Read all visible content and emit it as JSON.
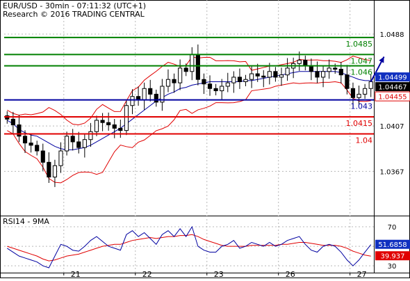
{
  "header": {
    "title": "EUR/USD - 30min - 07:11:32 (UTC+1)",
    "subtitle": "Research © 2016 TRADING CENTRAL"
  },
  "rsi_panel": {
    "label": "RSI14 - 9MA"
  },
  "colors": {
    "resistance": "#008000",
    "support_pivot": "#0000a0",
    "support": "#e00000",
    "bollinger": "#e00000",
    "ma": "#0000a0",
    "candle": "#000000",
    "rsi": "#0000a0",
    "rsi_ma": "#e00000",
    "grid": "#b8b8b8"
  },
  "chart_data": [
    {
      "type": "candlestick",
      "instrument": "EUR/USD",
      "timeframe": "30min",
      "ylim": [
        1.0328,
        1.0518
      ],
      "y_ticks": [
        1.0367,
        1.0407,
        1.0488
      ],
      "y_tick_labels": [
        "1.0367",
        "1.0407",
        "1.0488"
      ],
      "x_tick_labels": [
        "21",
        "22",
        "23",
        "26",
        "27"
      ],
      "x_tick_positions": [
        10,
        22,
        34,
        46,
        58
      ],
      "bar_count": 62,
      "grid": true,
      "levels": [
        {
          "label": "1.0485",
          "value": 1.0485,
          "kind": "resistance"
        },
        {
          "label": "1.047",
          "value": 1.047,
          "kind": "resistance"
        },
        {
          "label": "1.046",
          "value": 1.046,
          "kind": "resistance"
        },
        {
          "label": "1.043",
          "value": 1.043,
          "kind": "pivot"
        },
        {
          "label": "1.0415",
          "value": 1.0415,
          "kind": "support"
        },
        {
          "label": "1.04",
          "value": 1.04,
          "kind": "support"
        }
      ],
      "price_tags": [
        {
          "label": "1.04499",
          "value": 1.04499,
          "style": "blue"
        },
        {
          "label": "1.04467",
          "value": 1.04467,
          "style": "black"
        },
        {
          "label": "1.04455",
          "value": 1.04455,
          "style": "red"
        }
      ],
      "close": [
        1.0413,
        1.0408,
        1.0398,
        1.0392,
        1.039,
        1.0385,
        1.0375,
        1.0362,
        1.0372,
        1.0385,
        1.0398,
        1.0393,
        1.0388,
        1.0395,
        1.0402,
        1.0412,
        1.041,
        1.0408,
        1.0405,
        1.0403,
        1.0425,
        1.0433,
        1.043,
        1.044,
        1.0435,
        1.0428,
        1.0442,
        1.0448,
        1.0445,
        1.0458,
        1.0455,
        1.047,
        1.0448,
        1.0444,
        1.044,
        1.0438,
        1.0442,
        1.0445,
        1.045,
        1.0446,
        1.0448,
        1.0453,
        1.0451,
        1.045,
        1.0455,
        1.045,
        1.0452,
        1.0458,
        1.0462,
        1.0465,
        1.046,
        1.0455,
        1.045,
        1.0455,
        1.0458,
        1.0457,
        1.0452,
        1.044,
        1.0432,
        1.0435,
        1.044,
        1.0446
      ],
      "ma": [
        1.0412,
        1.0409,
        1.0404,
        1.0401,
        1.0399,
        1.0398,
        1.0395,
        1.0392,
        1.0389,
        1.0387,
        1.0386,
        1.0386,
        1.0387,
        1.0388,
        1.039,
        1.0393,
        1.0396,
        1.0399,
        1.0402,
        1.0405,
        1.0409,
        1.0413,
        1.0417,
        1.0421,
        1.0425,
        1.0429,
        1.0432,
        1.0435,
        1.0437,
        1.044,
        1.0441,
        1.0443,
        1.0444,
        1.0445,
        1.0446,
        1.0446,
        1.0446,
        1.0446,
        1.0446,
        1.0446,
        1.0447,
        1.0447,
        1.0448,
        1.0449,
        1.045,
        1.0451,
        1.0452,
        1.0453,
        1.0454,
        1.0455,
        1.0455,
        1.0455,
        1.0455,
        1.0455,
        1.0455,
        1.0455,
        1.0454,
        1.0452,
        1.045,
        1.0448,
        1.0447,
        1.0447
      ],
      "forecast": [
        {
          "bar": 61,
          "value": 1.0446
        },
        {
          "bar": 63.2,
          "value": 1.0468
        }
      ]
    },
    {
      "type": "line",
      "title": "RSI14 - 9MA",
      "ylim": [
        23,
        80
      ],
      "y_ticks": [
        30,
        70
      ],
      "y_tick_labels": [
        "30",
        "70"
      ],
      "value_tags": [
        {
          "label": "51.6858",
          "value": 51.6858,
          "series": "RSI14"
        },
        {
          "label": "39.937",
          "value": 39.937,
          "series": "9MA"
        }
      ],
      "series": [
        {
          "name": "RSI14",
          "values": [
            48,
            44,
            40,
            38,
            36,
            34,
            30,
            28,
            40,
            52,
            50,
            46,
            45,
            50,
            56,
            60,
            55,
            50,
            48,
            46,
            62,
            66,
            60,
            64,
            58,
            52,
            62,
            66,
            60,
            68,
            60,
            70,
            50,
            46,
            44,
            44,
            50,
            52,
            56,
            48,
            50,
            54,
            52,
            50,
            54,
            50,
            52,
            56,
            58,
            60,
            52,
            46,
            44,
            50,
            52,
            50,
            44,
            36,
            30,
            36,
            44,
            51.69
          ]
        },
        {
          "name": "9MA",
          "values": [
            50,
            48,
            46,
            44,
            42,
            40,
            37,
            35,
            36,
            38,
            40,
            41,
            42,
            44,
            46,
            48,
            50,
            51,
            52,
            52,
            54,
            56,
            57,
            58,
            59,
            58,
            59,
            60,
            60,
            61,
            61,
            62,
            60,
            57,
            55,
            53,
            51,
            50,
            50,
            50,
            50,
            51,
            51,
            51,
            51,
            51,
            52,
            52,
            53,
            54,
            54,
            53,
            52,
            51,
            51,
            51,
            50,
            48,
            45,
            43,
            41,
            39.94
          ]
        }
      ]
    }
  ]
}
